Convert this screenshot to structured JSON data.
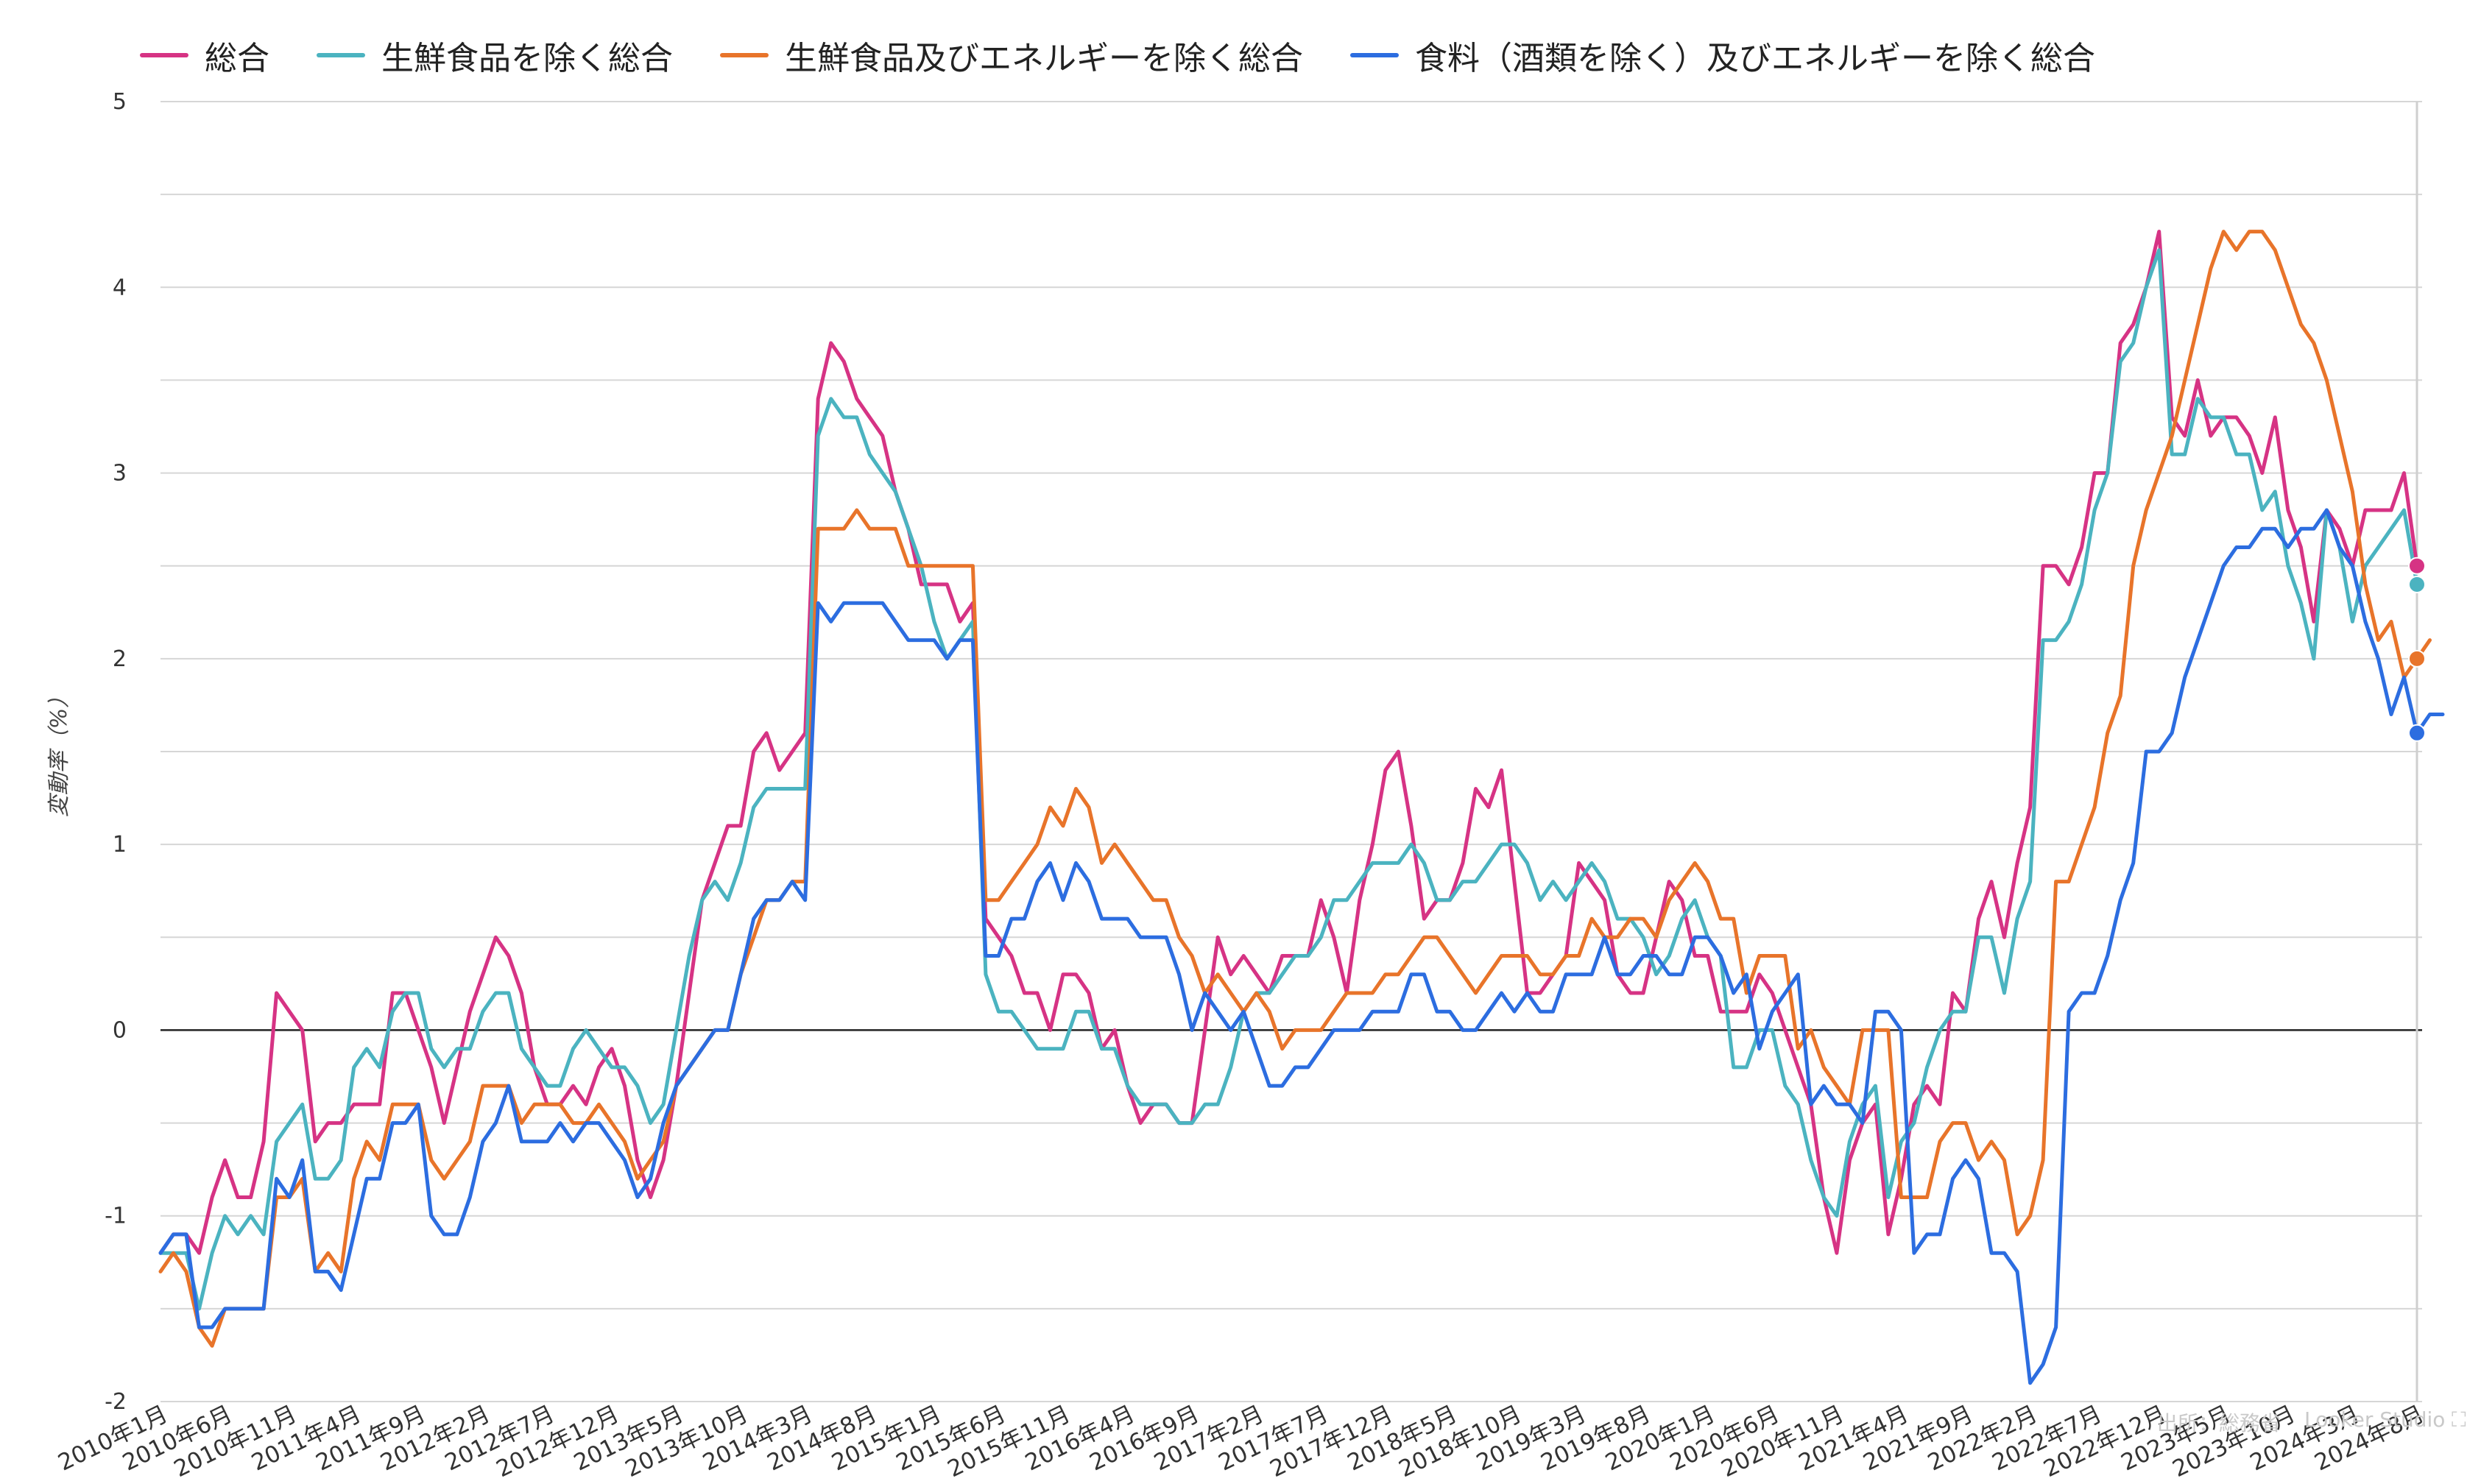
{
  "legend_items": [
    "総合",
    "生鮮食品を除く総合",
    "生鮮食品及びエネルギーを除く総合",
    "食料（酒類を除く）及びエネルギーを除く総合"
  ],
  "footer": {
    "source": "出所：総務省",
    "tool": "Looker Studio"
  },
  "icons": {
    "fullscreen": "fullscreen-icon"
  },
  "chart_data": {
    "type": "line",
    "ylabel": "変動率（%）",
    "xlabel": "",
    "ylim": [
      -2,
      5
    ],
    "yticks": [
      -2,
      -1,
      0,
      1,
      2,
      3,
      4,
      5
    ],
    "grid": true,
    "legend_position": "top",
    "start": "2010年1月",
    "x_tick_labels": [
      "2010年1月",
      "2010年6月",
      "2010年11月",
      "2011年4月",
      "2011年9月",
      "2012年2月",
      "2012年7月",
      "2012年12月",
      "2013年5月",
      "2013年10月",
      "2014年3月",
      "2014年8月",
      "2015年1月",
      "2015年6月",
      "2015年11月",
      "2016年4月",
      "2016年9月",
      "2017年2月",
      "2017年7月",
      "2017年12月",
      "2018年5月",
      "2018年10月",
      "2019年3月",
      "2019年8月",
      "2020年1月",
      "2020年6月",
      "2020年11月",
      "2021年4月",
      "2021年9月",
      "2022年2月",
      "2022年7月",
      "2022年12月",
      "2023年5月",
      "2023年10月",
      "2024年3月",
      "2024年8月"
    ],
    "highlight_label": "2024年8月",
    "series": [
      {
        "name": "総合",
        "color": "#d63384",
        "values": [
          -1.2,
          -1.1,
          -1.1,
          -1.2,
          -0.9,
          -0.7,
          -0.9,
          -0.9,
          -0.6,
          0.2,
          0.1,
          0.0,
          -0.6,
          -0.5,
          -0.5,
          -0.4,
          -0.4,
          -0.4,
          0.2,
          0.2,
          0.0,
          -0.2,
          -0.5,
          -0.2,
          0.1,
          0.3,
          0.5,
          0.4,
          0.2,
          -0.2,
          -0.4,
          -0.4,
          -0.3,
          -0.4,
          -0.2,
          -0.1,
          -0.3,
          -0.7,
          -0.9,
          -0.7,
          -0.3,
          0.2,
          0.7,
          0.9,
          1.1,
          1.1,
          1.5,
          1.6,
          1.4,
          1.5,
          1.6,
          3.4,
          3.7,
          3.6,
          3.4,
          3.3,
          3.2,
          2.9,
          2.7,
          2.4,
          2.4,
          2.4,
          2.2,
          2.3,
          0.6,
          0.5,
          0.4,
          0.2,
          0.2,
          0.0,
          0.3,
          0.3,
          0.2,
          -0.1,
          0.0,
          -0.3,
          -0.5,
          -0.4,
          -0.4,
          -0.5,
          -0.5,
          0.0,
          0.5,
          0.3,
          0.4,
          0.3,
          0.2,
          0.4,
          0.4,
          0.4,
          0.7,
          0.5,
          0.2,
          0.7,
          1.0,
          1.4,
          1.5,
          1.1,
          0.6,
          0.7,
          0.7,
          0.9,
          1.3,
          1.2,
          1.4,
          0.8,
          0.2,
          0.2,
          0.3,
          0.4,
          0.9,
          0.8,
          0.7,
          0.3,
          0.2,
          0.2,
          0.5,
          0.8,
          0.7,
          0.4,
          0.4,
          0.1,
          0.1,
          0.1,
          0.3,
          0.2,
          0.0,
          -0.2,
          -0.4,
          -0.9,
          -1.2,
          -0.7,
          -0.5,
          -0.4,
          -1.1,
          -0.8,
          -0.4,
          -0.3,
          -0.4,
          0.2,
          0.1,
          0.6,
          0.8,
          0.5,
          0.9,
          1.2,
          2.5,
          2.5,
          2.4,
          2.6,
          3.0,
          3.0,
          3.7,
          3.8,
          4.0,
          4.3,
          3.3,
          3.2,
          3.5,
          3.2,
          3.3,
          3.3,
          3.2,
          3.0,
          3.3,
          2.8,
          2.6,
          2.2,
          2.8,
          2.7,
          2.5,
          2.8,
          2.8,
          2.8,
          3.0,
          2.5
        ]
      },
      {
        "name": "生鮮食品を除く総合",
        "color": "#4bb3c0",
        "values": [
          -1.2,
          -1.2,
          -1.2,
          -1.5,
          -1.2,
          -1.0,
          -1.1,
          -1.0,
          -1.1,
          -0.6,
          -0.5,
          -0.4,
          -0.8,
          -0.8,
          -0.7,
          -0.2,
          -0.1,
          -0.2,
          0.1,
          0.2,
          0.2,
          -0.1,
          -0.2,
          -0.1,
          -0.1,
          0.1,
          0.2,
          0.2,
          -0.1,
          -0.2,
          -0.3,
          -0.3,
          -0.1,
          0.0,
          -0.1,
          -0.2,
          -0.2,
          -0.3,
          -0.5,
          -0.4,
          0.0,
          0.4,
          0.7,
          0.8,
          0.7,
          0.9,
          1.2,
          1.3,
          1.3,
          1.3,
          1.3,
          3.2,
          3.4,
          3.3,
          3.3,
          3.1,
          3.0,
          2.9,
          2.7,
          2.5,
          2.2,
          2.0,
          2.1,
          2.2,
          0.3,
          0.1,
          0.1,
          0.0,
          -0.1,
          -0.1,
          -0.1,
          0.1,
          0.1,
          -0.1,
          -0.1,
          -0.3,
          -0.4,
          -0.4,
          -0.4,
          -0.5,
          -0.5,
          -0.4,
          -0.4,
          -0.2,
          0.1,
          0.2,
          0.2,
          0.3,
          0.4,
          0.4,
          0.5,
          0.7,
          0.7,
          0.8,
          0.9,
          0.9,
          0.9,
          1.0,
          0.9,
          0.7,
          0.7,
          0.8,
          0.8,
          0.9,
          1.0,
          1.0,
          0.9,
          0.7,
          0.8,
          0.7,
          0.8,
          0.9,
          0.8,
          0.6,
          0.6,
          0.5,
          0.3,
          0.4,
          0.6,
          0.7,
          0.5,
          0.4,
          -0.2,
          -0.2,
          0.0,
          0.0,
          -0.3,
          -0.4,
          -0.7,
          -0.9,
          -1.0,
          -0.6,
          -0.4,
          -0.3,
          -0.9,
          -0.6,
          -0.5,
          -0.2,
          0.0,
          0.1,
          0.1,
          0.5,
          0.5,
          0.2,
          0.6,
          0.8,
          2.1,
          2.1,
          2.2,
          2.4,
          2.8,
          3.0,
          3.6,
          3.7,
          4.0,
          4.2,
          3.1,
          3.1,
          3.4,
          3.3,
          3.3,
          3.1,
          3.1,
          2.8,
          2.9,
          2.5,
          2.3,
          2.0,
          2.8,
          2.6,
          2.2,
          2.5,
          2.6,
          2.7,
          2.8,
          2.4
        ]
      },
      {
        "name": "生鮮食品及びエネルギーを除く総合",
        "color": "#e8742a",
        "values": [
          -1.3,
          -1.2,
          -1.3,
          -1.6,
          -1.7,
          -1.5,
          -1.5,
          -1.5,
          -1.5,
          -0.9,
          -0.9,
          -0.8,
          -1.3,
          -1.2,
          -1.3,
          -0.8,
          -0.6,
          -0.7,
          -0.4,
          -0.4,
          -0.4,
          -0.7,
          -0.8,
          -0.7,
          -0.6,
          -0.3,
          -0.3,
          -0.3,
          -0.5,
          -0.4,
          -0.4,
          -0.4,
          -0.5,
          -0.5,
          -0.4,
          -0.5,
          -0.6,
          -0.8,
          -0.7,
          -0.6,
          -0.3,
          -0.2,
          -0.1,
          0.0,
          0.0,
          0.3,
          0.5,
          0.7,
          0.7,
          0.8,
          0.8,
          2.7,
          2.7,
          2.7,
          2.8,
          2.7,
          2.7,
          2.7,
          2.5,
          2.5,
          2.5,
          2.5,
          2.5,
          2.5,
          0.7,
          0.7,
          0.8,
          0.9,
          1.0,
          1.2,
          1.1,
          1.3,
          1.2,
          0.9,
          1.0,
          0.9,
          0.8,
          0.7,
          0.7,
          0.5,
          0.4,
          0.2,
          0.3,
          0.2,
          0.1,
          0.2,
          0.1,
          -0.1,
          0.0,
          0.0,
          0.0,
          0.1,
          0.2,
          0.2,
          0.2,
          0.3,
          0.3,
          0.4,
          0.5,
          0.5,
          0.4,
          0.3,
          0.2,
          0.3,
          0.4,
          0.4,
          0.4,
          0.3,
          0.3,
          0.4,
          0.4,
          0.6,
          0.5,
          0.5,
          0.6,
          0.6,
          0.5,
          0.7,
          0.8,
          0.9,
          0.8,
          0.6,
          0.6,
          0.2,
          0.4,
          0.4,
          0.4,
          -0.1,
          0.0,
          -0.2,
          -0.3,
          -0.4,
          0.0,
          0.0,
          0.0,
          -0.9,
          -0.9,
          -0.9,
          -0.6,
          -0.5,
          -0.5,
          -0.7,
          -0.6,
          -0.7,
          -1.1,
          -1.0,
          -0.7,
          0.8,
          0.8,
          1.0,
          1.2,
          1.6,
          1.8,
          2.5,
          2.8,
          3.0,
          3.2,
          3.5,
          3.8,
          4.1,
          4.3,
          4.2,
          4.3,
          4.3,
          4.2,
          4.0,
          3.8,
          3.7,
          3.5,
          3.2,
          2.9,
          2.4,
          2.1,
          2.2,
          1.9,
          2.0,
          2.1
        ]
      },
      {
        "name": "食料（酒類を除く）及びエネルギーを除く総合",
        "color": "#2c6de0",
        "values": [
          -1.2,
          -1.1,
          -1.1,
          -1.6,
          -1.6,
          -1.5,
          -1.5,
          -1.5,
          -1.5,
          -0.8,
          -0.9,
          -0.7,
          -1.3,
          -1.3,
          -1.4,
          -1.1,
          -0.8,
          -0.8,
          -0.5,
          -0.5,
          -0.4,
          -1.0,
          -1.1,
          -1.1,
          -0.9,
          -0.6,
          -0.5,
          -0.3,
          -0.6,
          -0.6,
          -0.6,
          -0.5,
          -0.6,
          -0.5,
          -0.5,
          -0.6,
          -0.7,
          -0.9,
          -0.8,
          -0.5,
          -0.3,
          -0.2,
          -0.1,
          0.0,
          0.0,
          0.3,
          0.6,
          0.7,
          0.7,
          0.8,
          0.7,
          2.3,
          2.2,
          2.3,
          2.3,
          2.3,
          2.3,
          2.2,
          2.1,
          2.1,
          2.1,
          2.0,
          2.1,
          2.1,
          0.4,
          0.4,
          0.6,
          0.6,
          0.8,
          0.9,
          0.7,
          0.9,
          0.8,
          0.6,
          0.6,
          0.6,
          0.5,
          0.5,
          0.5,
          0.3,
          0.0,
          0.2,
          0.1,
          0.0,
          0.1,
          -0.1,
          -0.3,
          -0.3,
          -0.2,
          -0.2,
          -0.1,
          0.0,
          0.0,
          0.0,
          0.1,
          0.1,
          0.1,
          0.3,
          0.3,
          0.1,
          0.1,
          0.0,
          0.0,
          0.1,
          0.2,
          0.1,
          0.2,
          0.1,
          0.1,
          0.3,
          0.3,
          0.3,
          0.5,
          0.3,
          0.3,
          0.4,
          0.4,
          0.3,
          0.3,
          0.5,
          0.5,
          0.4,
          0.2,
          0.3,
          -0.1,
          0.1,
          0.2,
          0.3,
          -0.4,
          -0.3,
          -0.4,
          -0.4,
          -0.5,
          0.1,
          0.1,
          0.0,
          -1.2,
          -1.1,
          -1.1,
          -0.8,
          -0.7,
          -0.8,
          -1.2,
          -1.2,
          -1.3,
          -1.9,
          -1.8,
          -1.6,
          0.1,
          0.2,
          0.2,
          0.4,
          0.7,
          0.9,
          1.5,
          1.5,
          1.6,
          1.9,
          2.1,
          2.3,
          2.5,
          2.6,
          2.6,
          2.7,
          2.7,
          2.6,
          2.7,
          2.7,
          2.8,
          2.6,
          2.5,
          2.2,
          2.0,
          1.7,
          1.9,
          1.6,
          1.7,
          1.7
        ]
      }
    ]
  }
}
